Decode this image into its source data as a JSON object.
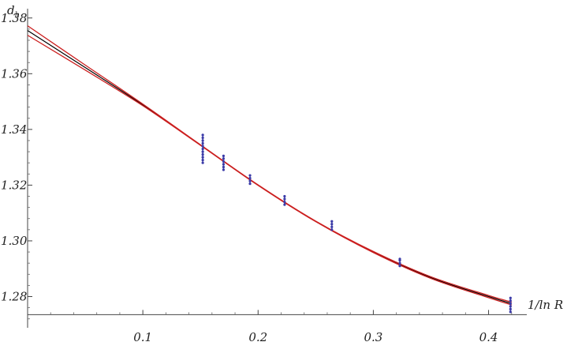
{
  "chart_data": {
    "type": "scatter",
    "title": "",
    "xlabel": "1/ln R",
    "ylabel": "d_h",
    "ylabel_main": "d",
    "ylabel_sub": "h",
    "xlim": [
      0.0,
      0.44
    ],
    "ylim": [
      1.2705,
      1.3805
    ],
    "x_ticks": [
      0.1,
      0.2,
      0.3,
      0.4
    ],
    "x_tick_labels": [
      "0.1",
      "0.2",
      "0.3",
      "0.4"
    ],
    "y_ticks": [
      1.28,
      1.3,
      1.32,
      1.34,
      1.36,
      1.38
    ],
    "y_tick_labels": [
      "1.28",
      "1.30",
      "1.32",
      "1.34",
      "1.36",
      "1.38"
    ],
    "grid": false,
    "series": [
      {
        "kind": "fit",
        "color": "#000000",
        "x": [
          0.0,
          0.05,
          0.1,
          0.15,
          0.2,
          0.25,
          0.3,
          0.35,
          0.4,
          0.42
        ],
        "y": [
          1.3755,
          1.3622,
          1.3488,
          1.3344,
          1.32,
          1.307,
          1.296,
          1.2868,
          1.28,
          1.2775
        ]
      },
      {
        "kind": "error-band-upper",
        "color": "#cc1f1f",
        "x": [
          0.0,
          0.05,
          0.1,
          0.15,
          0.2,
          0.25,
          0.3,
          0.35,
          0.4,
          0.42
        ],
        "y": [
          1.3772,
          1.3631,
          1.3491,
          1.3345,
          1.3201,
          1.3071,
          1.2962,
          1.2871,
          1.2804,
          1.278
        ]
      },
      {
        "kind": "error-band-lower",
        "color": "#cc1f1f",
        "x": [
          0.0,
          0.05,
          0.1,
          0.15,
          0.2,
          0.25,
          0.3,
          0.35,
          0.4,
          0.42
        ],
        "y": [
          1.3738,
          1.3613,
          1.3485,
          1.3343,
          1.3199,
          1.3069,
          1.2958,
          1.2865,
          1.2796,
          1.277
        ]
      },
      {
        "kind": "data",
        "color": "#3b3ba8",
        "groups": [
          {
            "x": 0.152,
            "y": [
              1.33,
              1.331,
              1.332,
              1.333,
              1.334,
              1.335,
              1.336,
              1.337,
              1.338,
              1.329,
              1.328
            ]
          },
          {
            "x": 0.17,
            "y": [
              1.3255,
              1.3265,
              1.3275,
              1.3285,
              1.3295,
              1.3305
            ]
          },
          {
            "x": 0.193,
            "y": [
              1.3205,
              1.3215,
              1.3225,
              1.3235
            ]
          },
          {
            "x": 0.223,
            "y": [
              1.313,
              1.314,
              1.315,
              1.316
            ]
          },
          {
            "x": 0.264,
            "y": [
              1.304,
              1.305,
              1.306,
              1.307
            ]
          },
          {
            "x": 0.323,
            "y": [
              1.291,
              1.292,
              1.293,
              1.2935
            ]
          },
          {
            "x": 0.419,
            "y": [
              1.2745,
              1.2755,
              1.2765,
              1.2775,
              1.2785,
              1.2795
            ]
          }
        ]
      }
    ]
  }
}
